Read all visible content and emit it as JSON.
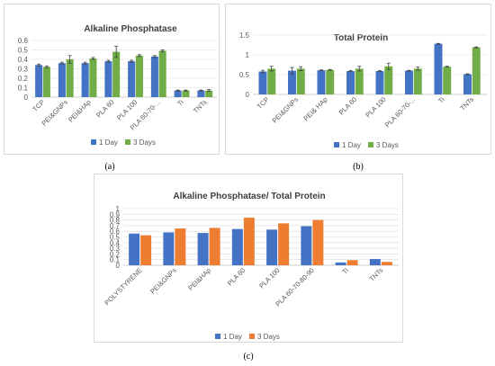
{
  "colors": {
    "day1": "#4472C4",
    "day3_green": "#70AD47",
    "day3_orange": "#ED7D31",
    "grid": "#d9d9d9",
    "axis": "#bfbfbf"
  },
  "captions": {
    "a": "(a)",
    "b": "(b)",
    "c": "(c)"
  },
  "chart_data": [
    {
      "type": "bar",
      "title": "Alkaline Phosphatase",
      "categories": [
        "TCP",
        "PEI&GNPs",
        "PEI&HAp",
        "PLA 60",
        "PLA 100",
        "PLA 60-70-...",
        "Ti",
        "TNTs"
      ],
      "series": [
        {
          "name": "1 Day",
          "values": [
            0.34,
            0.36,
            0.36,
            0.38,
            0.38,
            0.43,
            0.07,
            0.07
          ],
          "errors": [
            0.01,
            0.01,
            0.01,
            0.01,
            0.01,
            0.01,
            0.005,
            0.005
          ]
        },
        {
          "name": "3 Days",
          "values": [
            0.32,
            0.4,
            0.41,
            0.48,
            0.44,
            0.49,
            0.07,
            0.07
          ],
          "errors": [
            0.01,
            0.04,
            0.01,
            0.06,
            0.01,
            0.01,
            0.005,
            0.01
          ]
        }
      ],
      "ylim": [
        0,
        0.6
      ],
      "yticks": [
        "0",
        "0.1",
        "0.2",
        "0.3",
        "0.4",
        "0.5",
        "0.6"
      ],
      "legend": "bottom",
      "grid": true
    },
    {
      "type": "bar",
      "title": "Total Protein",
      "categories": [
        "TCP",
        "PEI&GNPs",
        "PEI& HAp",
        "PLA 60",
        "PLA 100",
        "PLA 60-70-...",
        "Ti",
        "TNTs"
      ],
      "series": [
        {
          "name": "1 Day",
          "values": [
            0.58,
            0.6,
            0.61,
            0.59,
            0.59,
            0.6,
            1.28,
            0.51
          ],
          "errors": [
            0.03,
            0.08,
            0.01,
            0.01,
            0.01,
            0.01,
            0.01,
            0.01
          ]
        },
        {
          "name": "3 Days",
          "values": [
            0.65,
            0.65,
            0.62,
            0.65,
            0.71,
            0.65,
            0.7,
            1.19
          ],
          "errors": [
            0.06,
            0.05,
            0.01,
            0.06,
            0.08,
            0.04,
            0.01,
            0.01
          ]
        }
      ],
      "ylim": [
        0,
        1.5
      ],
      "yticks": [
        "0",
        "0.5",
        "1",
        "1.5"
      ],
      "legend": "bottom",
      "grid": true
    },
    {
      "type": "bar",
      "title": "Alkaline Phosphatase/ Total Protein",
      "categories": [
        "POLYSTYRENE",
        "PEI&GNPs",
        "PEI&HAp",
        "PLA 60",
        "PLA 100",
        "PLA 60-70-80-90",
        "Ti",
        "TNTs"
      ],
      "series": [
        {
          "name": "1 Day",
          "values": [
            0.56,
            0.58,
            0.57,
            0.64,
            0.63,
            0.69,
            0.05,
            0.11
          ]
        },
        {
          "name": "3 Days",
          "values": [
            0.53,
            0.65,
            0.66,
            0.84,
            0.74,
            0.8,
            0.09,
            0.06
          ]
        }
      ],
      "ylim": [
        0,
        1
      ],
      "yticks": [
        "0",
        "0.1",
        "0.2",
        "0.3",
        "0.4",
        "0.5",
        "0.6",
        "0.7",
        "0.8",
        "0.9",
        "1"
      ],
      "legend": "bottom",
      "grid": true
    }
  ]
}
